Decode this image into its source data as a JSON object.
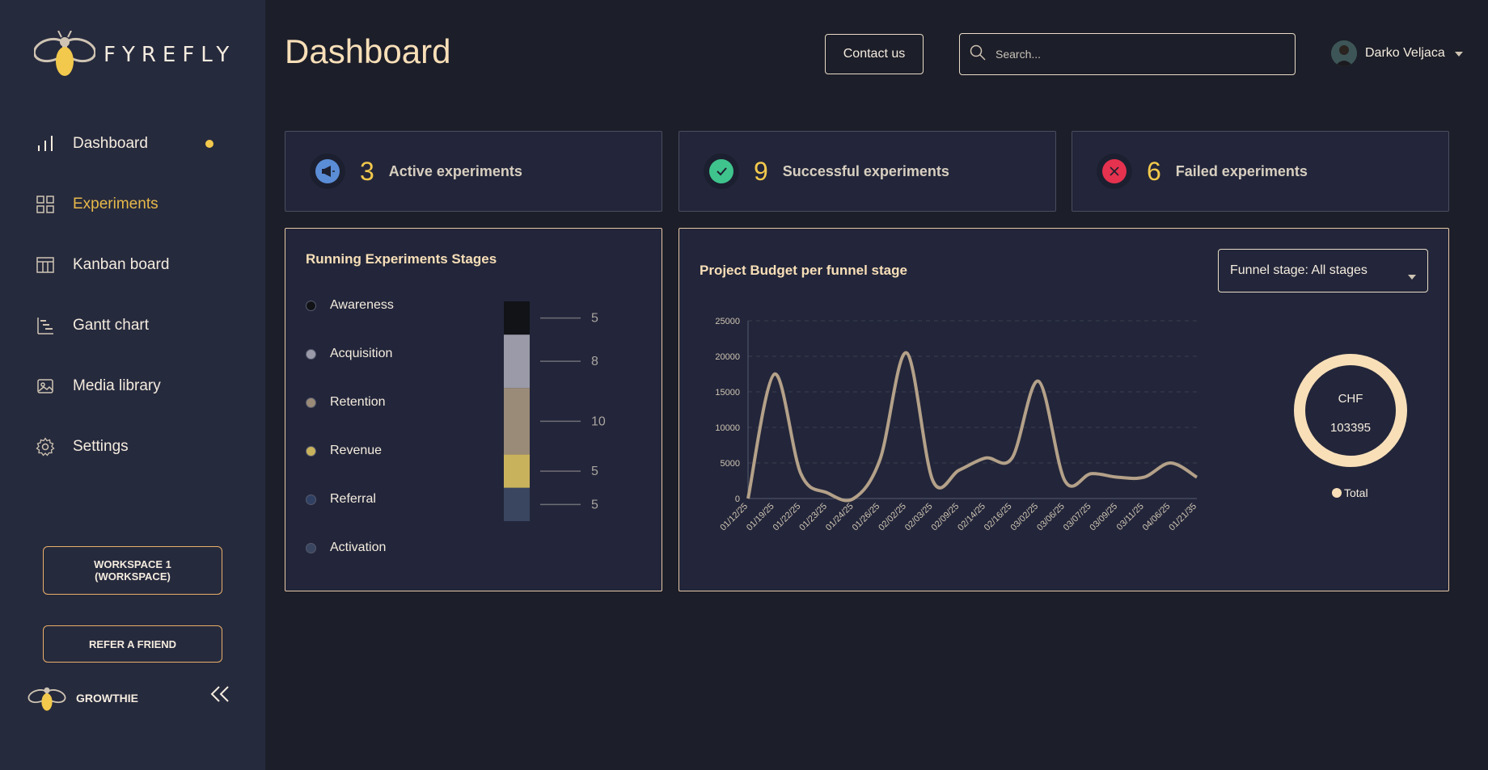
{
  "app": {
    "brand": "FYREFLY",
    "workspace_name": "GROWTHIE"
  },
  "sidebar": {
    "items": [
      {
        "label": "Dashboard",
        "icon": "bar-chart-icon",
        "badge": true
      },
      {
        "label": "Experiments",
        "icon": "grid-icon"
      },
      {
        "label": "Kanban board",
        "icon": "table-icon"
      },
      {
        "label": "Gantt chart",
        "icon": "gantt-icon"
      },
      {
        "label": "Media library",
        "icon": "image-icon"
      },
      {
        "label": "Settings",
        "icon": "gear-icon"
      }
    ],
    "workspace_button": "WORKSPACE 1\n(WORKSPACE)",
    "workspace_line1": "WORKSPACE 1",
    "workspace_line2": "(WORKSPACE)",
    "refer_button": "REFER A FRIEND"
  },
  "header": {
    "title": "Dashboard",
    "contact_label": "Contact us",
    "search_placeholder": "Search...",
    "user_name": "Darko Veljaca"
  },
  "stats": [
    {
      "value": "3",
      "label": "Active experiments",
      "icon": "megaphone-icon",
      "color": "#5b8dd6"
    },
    {
      "value": "9",
      "label": "Successful experiments",
      "icon": "check-icon",
      "color": "#3fc48d"
    },
    {
      "value": "6",
      "label": "Failed experiments",
      "icon": "close-icon",
      "color": "#e5324f"
    }
  ],
  "stages_panel": {
    "title": "Running Experiments Stages",
    "stages": [
      {
        "label": "Awareness",
        "color": "#111317",
        "value": 5
      },
      {
        "label": "Acquisition",
        "color": "#9a9aa8",
        "value": 8
      },
      {
        "label": "Retention",
        "color": "#9a8a78",
        "value": 10
      },
      {
        "label": "Revenue",
        "color": "#c9b25c",
        "value": 5
      },
      {
        "label": "Referral",
        "color": "#2f4063",
        "value": 0
      },
      {
        "label": "Activation",
        "color": "#3a4660",
        "value": 5
      }
    ],
    "bar_labels": [
      "5",
      "8",
      "10",
      "5",
      "5"
    ]
  },
  "budget_panel": {
    "title": "Project Budget per funnel stage",
    "select_label": "Funnel stage: All stages",
    "donut_currency": "CHF",
    "donut_total": "103395",
    "legend_label": "Total"
  },
  "chart_data": [
    {
      "type": "line",
      "title": "Project Budget per funnel stage",
      "categories": [
        "01/12/25",
        "01/19/25",
        "01/22/25",
        "01/23/25",
        "01/24/25",
        "01/26/25",
        "02/02/25",
        "02/03/25",
        "02/09/25",
        "02/14/25",
        "02/16/25",
        "03/02/25",
        "03/06/25",
        "03/07/25",
        "03/09/25",
        "03/11/25",
        "04/06/25",
        "01/21/35"
      ],
      "values": [
        0,
        17500,
        3500,
        800,
        0,
        5500,
        20500,
        2500,
        4000,
        5700,
        5700,
        16500,
        2500,
        3500,
        3000,
        3000,
        5000,
        3000
      ],
      "ylim": [
        0,
        25000
      ],
      "yticks": [
        "25000",
        "20000",
        "15000",
        "10000",
        "5000",
        "0"
      ],
      "color": "#b4a189"
    },
    {
      "type": "pie",
      "title": "",
      "labels": [
        "Total"
      ],
      "values": [
        103395
      ],
      "center_text": [
        "CHF",
        "103395"
      ],
      "color": "#f8dfb8"
    }
  ]
}
